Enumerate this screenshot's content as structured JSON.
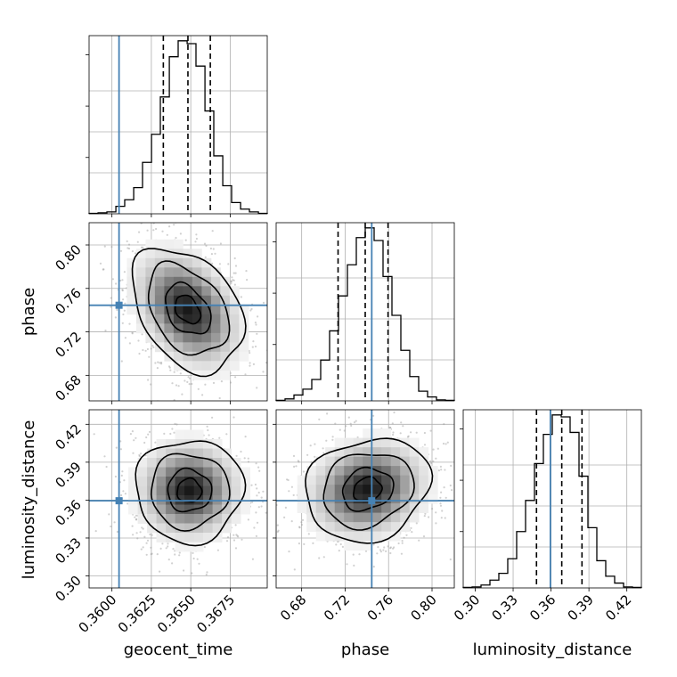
{
  "chart_data": {
    "type": "corner",
    "parameters": [
      "geocent_time",
      "phase",
      "luminosity_distance"
    ],
    "axis_labels": {
      "x": [
        "geocent_time",
        "phase",
        "luminosity_distance"
      ],
      "y": [
        "",
        "phase",
        "luminosity_distance"
      ]
    },
    "ranges": {
      "geocent_time": [
        0.35855,
        0.36985
      ],
      "phase": [
        0.6565,
        0.8205
      ],
      "luminosity_distance": [
        0.2905,
        0.4315
      ]
    },
    "ticks": {
      "geocent_time": {
        "values": [
          0.36,
          0.3625,
          0.365,
          0.3675
        ],
        "labels": [
          "0.3600",
          "0.3625",
          "0.3650",
          "0.3675"
        ]
      },
      "phase": {
        "values": [
          0.68,
          0.72,
          0.76,
          0.8
        ],
        "labels": [
          "0.68",
          "0.72",
          "0.76",
          "0.80"
        ]
      },
      "luminosity_distance": {
        "values": [
          0.3,
          0.33,
          0.36,
          0.39,
          0.42
        ],
        "labels": [
          "0.30",
          "0.33",
          "0.36",
          "0.39",
          "0.42"
        ]
      }
    },
    "truths": {
      "geocent_time": 0.36045,
      "phase": 0.7445,
      "luminosity_distance": 0.3595
    },
    "truth_color": "#4682b4",
    "quantiles": {
      "geocent_time": [
        0.36326,
        0.36482,
        0.36624
      ],
      "phase": [
        0.7135,
        0.7385,
        0.7595
      ],
      "luminosity_distance": [
        0.3485,
        0.3685,
        0.3845
      ]
    },
    "histograms": {
      "geocent_time": {
        "bin_edges": [
          0.35855,
          0.35912,
          0.35968,
          0.36025,
          0.36081,
          0.36138,
          0.36194,
          0.36251,
          0.36307,
          0.36364,
          0.3642,
          0.36477,
          0.36533,
          0.3659,
          0.36646,
          0.36703,
          0.36759,
          0.36816,
          0.36872,
          0.36929,
          0.36985
        ],
        "counts": [
          0.5,
          1,
          2,
          8,
          15,
          28,
          55,
          85,
          125,
          168,
          185,
          182,
          158,
          110,
          62,
          30,
          12,
          5,
          2,
          0.5
        ]
      },
      "phase": {
        "bin_edges": [
          0.6565,
          0.6647,
          0.6729,
          0.6811,
          0.6893,
          0.6975,
          0.7057,
          0.7139,
          0.7221,
          0.7303,
          0.7385,
          0.7467,
          0.7549,
          0.7631,
          0.7713,
          0.7795,
          0.7877,
          0.7959,
          0.8041,
          0.8123,
          0.8205
        ],
        "counts": [
          0.5,
          2,
          6,
          12,
          22,
          42,
          72,
          108,
          140,
          168,
          178,
          165,
          128,
          88,
          52,
          25,
          10,
          4,
          1,
          0.5
        ]
      },
      "luminosity_distance": {
        "bin_edges": [
          0.2905,
          0.29755,
          0.3046,
          0.31165,
          0.3187,
          0.32575,
          0.3328,
          0.33985,
          0.3469,
          0.35395,
          0.361,
          0.36805,
          0.3751,
          0.38215,
          0.3892,
          0.39625,
          0.4033,
          0.41035,
          0.4174,
          0.42445,
          0.4315
        ],
        "counts": [
          0.5,
          1,
          3,
          8,
          15,
          30,
          58,
          90,
          128,
          158,
          178,
          176,
          160,
          115,
          62,
          28,
          12,
          5,
          1,
          0.5
        ]
      }
    },
    "scatter_panels": [
      {
        "x": "geocent_time",
        "y": "phase",
        "center": [
          0.3648,
          0.7405
        ],
        "spread": [
          0.0016,
          0.026
        ],
        "correlation": -0.35,
        "levels": [
          0.5,
          0.9,
          1.6,
          2.2
        ]
      },
      {
        "x": "geocent_time",
        "y": "luminosity_distance",
        "center": [
          0.3649,
          0.3675
        ],
        "spread": [
          0.00155,
          0.0185
        ],
        "correlation": 0.0,
        "levels": [
          0.5,
          0.9,
          1.6,
          2.2
        ]
      },
      {
        "x": "phase",
        "y": "luminosity_distance",
        "center": [
          0.7405,
          0.3685
        ],
        "spread": [
          0.026,
          0.0185
        ],
        "correlation": 0.15,
        "levels": [
          0.5,
          0.9,
          1.6,
          2.2
        ]
      }
    ],
    "grid": true
  }
}
